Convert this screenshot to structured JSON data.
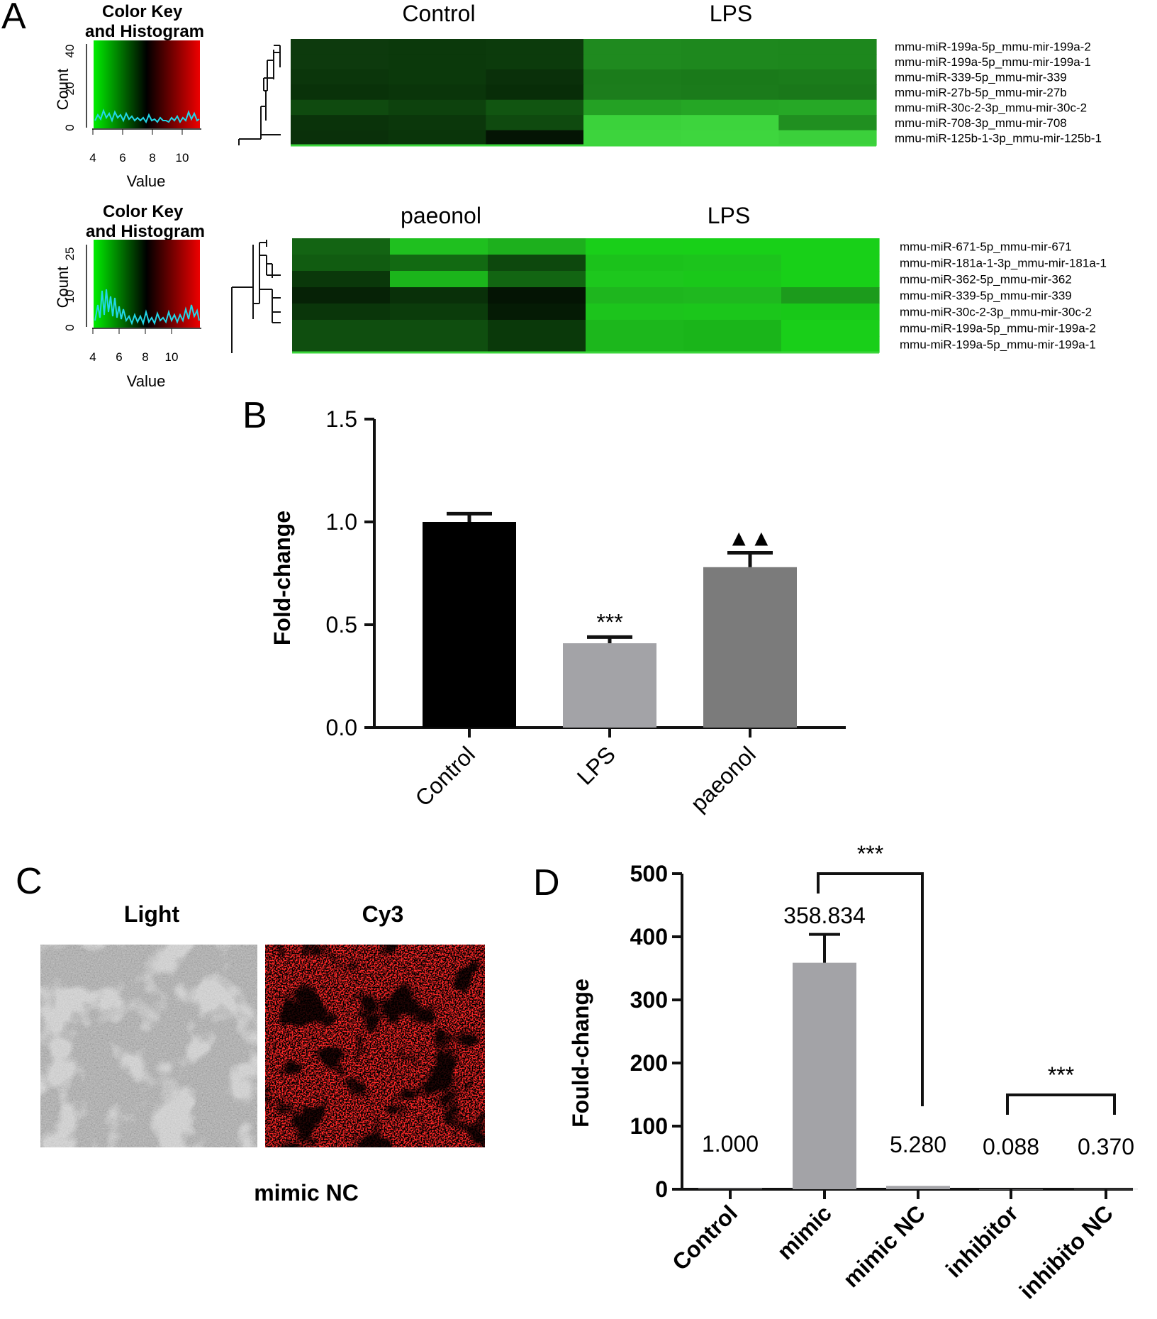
{
  "panel_labels": [
    "A",
    "B",
    "C",
    "D"
  ],
  "heatmaps": [
    {
      "group_labels": [
        "Control",
        "LPS"
      ],
      "rows": [
        "mmu-miR-199a-5p_mmu-mir-199a-2",
        "mmu-miR-199a-5p_mmu-mir-199a-1",
        "mmu-miR-339-5p_mmu-mir-339",
        "mmu-miR-27b-5p_mmu-mir-27b",
        "mmu-miR-30c-2-3p_mmu-mir-30c-2",
        "mmu-miR-708-3p_mmu-mir-708",
        "mmu-miR-125b-1-3p_mmu-mir-125b-1"
      ],
      "cells": [
        [
          "#0d3a0d",
          "#0b390b",
          "#0c3b0c",
          "#1f8a1f",
          "#1e881e",
          "#1d871d"
        ],
        [
          "#0d3a0d",
          "#0b390b",
          "#0c3b0c",
          "#1f8a1f",
          "#1e881e",
          "#1d871d"
        ],
        [
          "#0b360b",
          "#0b390b",
          "#0a300a",
          "#1b7c1b",
          "#1a7a1a",
          "#1b7c1b"
        ],
        [
          "#093209",
          "#0a350a",
          "#082d08",
          "#1c7d1c",
          "#1b7b1b",
          "#1a781a"
        ],
        [
          "#0f4a0f",
          "#0d420d",
          "#115511",
          "#24a124",
          "#25a625",
          "#26a826"
        ],
        [
          "#0a330a",
          "#0b370b",
          "#0f4a0f",
          "#3bd23b",
          "#3dd43d",
          "#208f20"
        ],
        [
          "#0a300a",
          "#0a350a",
          "#041404",
          "#3dd43d",
          "#3ed63e",
          "#3bd03b"
        ]
      ],
      "key": {
        "title": "Color Key\nand Histogram",
        "ylabel": "Count",
        "xlabel": "Value",
        "xticks": [
          "4",
          "6",
          "8",
          "10"
        ],
        "yticks": [
          "0",
          "20",
          "40"
        ]
      }
    },
    {
      "group_labels": [
        "paeonol",
        "LPS"
      ],
      "rows": [
        "mmu-miR-671-5p_mmu-mir-671",
        "mmu-miR-181a-1-3p_mmu-mir-181a-1",
        "mmu-miR-362-5p_mmu-mir-362",
        "mmu-miR-339-5p_mmu-mir-339",
        "mmu-miR-30c-2-3p_mmu-mir-30c-2",
        "mmu-miR-199a-5p_mmu-mir-199a-2",
        "mmu-miR-199a-5p_mmu-mir-199a-1"
      ],
      "cells": [
        [
          "#136413",
          "#1fc01f",
          "#1db01d",
          "#19cf19",
          "#18d018",
          "#18d018"
        ],
        [
          "#115c11",
          "#126a12",
          "#0d480d",
          "#1bc21b",
          "#1cc41c",
          "#18d018"
        ],
        [
          "#0a380a",
          "#1bb51b",
          "#126512",
          "#1dc71d",
          "#1ac81a",
          "#18d018"
        ],
        [
          "#062206",
          "#093009",
          "#041404",
          "#1eb61e",
          "#1fb81f",
          "#1c9b1c"
        ],
        [
          "#0a360a",
          "#0b3c0b",
          "#051b05",
          "#1cc41c",
          "#1bc61b",
          "#18c818"
        ],
        [
          "#0f4e0f",
          "#0f4e0f",
          "#0a390a",
          "#1cb71c",
          "#1ab51a",
          "#19cf19"
        ],
        [
          "#0f4e0f",
          "#0f4e0f",
          "#0a390a",
          "#1cb71c",
          "#1ab51a",
          "#19cf19"
        ]
      ],
      "key": {
        "title": "Color Key\nand Histogram",
        "ylabel": "Count",
        "xlabel": "Value",
        "xticks": [
          "4",
          "6",
          "8",
          "10"
        ],
        "yticks": [
          "0",
          "10",
          "25"
        ]
      }
    }
  ],
  "chart_data": [
    {
      "type": "bar",
      "panel": "B",
      "categories": [
        "Control",
        "LPS",
        "paeonol"
      ],
      "values": [
        1.0,
        0.41,
        0.78
      ],
      "errors": [
        0.04,
        0.03,
        0.07
      ],
      "colors": [
        "#000000",
        "#a3a3a7",
        "#7b7b7b"
      ],
      "ylabel": "Fold-change",
      "ylim": [
        0,
        1.5
      ],
      "yticks": [
        "0.0",
        "0.5",
        "1.0",
        "1.5"
      ],
      "annotations": [
        {
          "category": "LPS",
          "text": "***"
        },
        {
          "category": "paeonol",
          "text": "▲▲"
        }
      ]
    },
    {
      "type": "bar",
      "panel": "D",
      "categories": [
        "Control",
        "mimic",
        "mimic NC",
        "inhibitor",
        "inhibito  NC"
      ],
      "values": [
        1.0,
        358.834,
        5.28,
        0.088,
        0.37
      ],
      "value_labels": [
        "1.000",
        "358.834",
        "5.280",
        "0.088",
        "0.370"
      ],
      "errors": [
        0,
        45,
        0,
        0,
        0
      ],
      "colors": [
        "#a3a3a7",
        "#a3a3a7",
        "#a3a3a7",
        "#a3a3a7",
        "#a3a3a7"
      ],
      "ylabel": "Fould-change",
      "ylim": [
        0,
        500
      ],
      "yticks": [
        "0",
        "100",
        "200",
        "300",
        "400",
        "500"
      ],
      "brackets": [
        {
          "from": "mimic",
          "to": "mimic NC",
          "text": "***"
        },
        {
          "from": "inhibitor",
          "to": "inhibito  NC",
          "text": "***"
        }
      ]
    }
  ],
  "panel_c": {
    "image_labels": [
      "Light",
      "Cy3"
    ],
    "caption": "mimic NC"
  }
}
